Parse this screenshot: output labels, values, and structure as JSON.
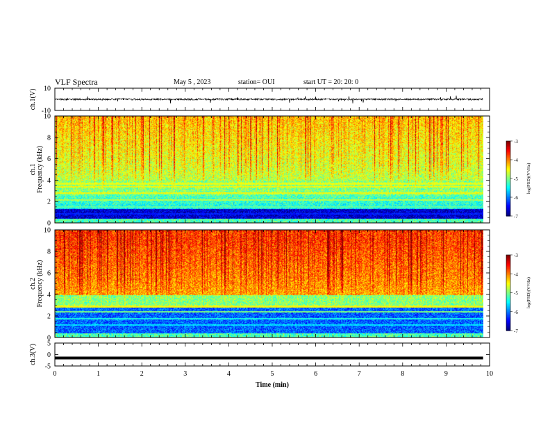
{
  "header": {
    "title": "VLF Spectra",
    "date": "May 5  , 2023",
    "station": "station= OUI",
    "start": "start  UT  =   20: 20: 0"
  },
  "chart_data": [
    {
      "type": "line",
      "name": "ch1-waveform",
      "ylabel": "ch.1(V)",
      "ylim": [
        -10,
        10
      ],
      "yticks": [
        "10",
        "-10"
      ],
      "x_range": [
        0,
        9.8
      ],
      "baseline": 0,
      "amplitude_typical": 1.5
    },
    {
      "type": "heatmap",
      "name": "ch1-spectrogram",
      "ylabel_line1": "ch.1",
      "ylabel_line2": "Frequency (kHz)",
      "ylim": [
        0,
        10
      ],
      "yticks": [
        "0",
        "2",
        "4",
        "6",
        "8",
        "10"
      ],
      "colorbar": {
        "label": "log(PSD)(V²/Hz)",
        "range": [
          -7,
          -3
        ],
        "ticks": [
          "-3",
          "-4",
          "-5",
          "-6",
          "-7"
        ]
      }
    },
    {
      "type": "heatmap",
      "name": "ch2-spectrogram",
      "ylabel_line1": "ch.2",
      "ylabel_line2": "Frequency (kHz)",
      "ylim": [
        0,
        10
      ],
      "yticks": [
        "0",
        "2",
        "4",
        "6",
        "8",
        "10"
      ],
      "colorbar": {
        "label": "log(PSD)(V²/Hz)",
        "range": [
          -7,
          -3
        ],
        "ticks": [
          "-3",
          "-4",
          "-5",
          "-6",
          "-7"
        ]
      }
    },
    {
      "type": "line",
      "name": "ch3-waveform",
      "ylabel": "ch.3(V)",
      "ylim": [
        -5,
        5
      ],
      "yticks": [
        "5",
        "0",
        "-5"
      ],
      "x_range": [
        0,
        9.8
      ],
      "baseline": -1.5
    }
  ],
  "xaxis": {
    "label": "Time  (min)",
    "range": [
      0,
      10
    ],
    "ticks": [
      "0",
      "1",
      "2",
      "3",
      "4",
      "5",
      "6",
      "7",
      "8",
      "9",
      "10"
    ]
  }
}
